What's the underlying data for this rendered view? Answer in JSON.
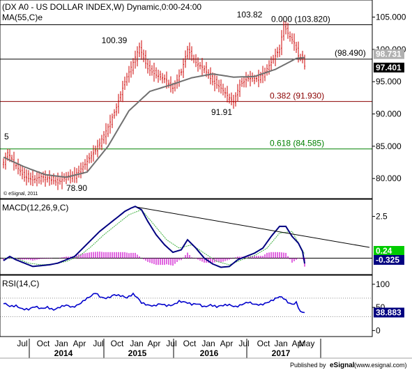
{
  "header": {
    "title": "(DX A0 - US DOLLAR INDEX,W) Dynamic,0:00-24:00",
    "ma_label": "MA(55,C)e",
    "copyright": "© eSignal, 2011",
    "published_by": "Published by",
    "publisher": "eSignal",
    "publisher_url": "(www.esignal.com)"
  },
  "colors": {
    "price_bars": "#cc0000",
    "ma_line": "#707070",
    "macd_line": "#000080",
    "signal_line": "#40b040",
    "histogram": "#cc00cc",
    "rsi_line": "#0000cc",
    "fib_0": "#000000",
    "fib_382": "#8b0000",
    "fib_618": "#008000",
    "trendline": "#000000"
  },
  "chart_data": [
    {
      "type": "bar",
      "panel": "price",
      "title": "(DX A0 - US DOLLAR INDEX,W) Dynamic,0:00-24:00",
      "ylim": [
        77,
        107
      ],
      "yticks": [
        80,
        85,
        90,
        95,
        100,
        105
      ],
      "ytick_labels": [
        "80.000",
        "85.000",
        "90.000",
        "95.000",
        "100.000",
        "105.000"
      ],
      "x": [
        "Jul",
        "Oct",
        "Jan",
        "Apr",
        "Jul",
        "Oct",
        "Jan",
        "Apr",
        "Jul",
        "Oct",
        "Jan",
        "Apr",
        "Jul",
        "Oct",
        "Jan",
        "Apr",
        "May"
      ],
      "year_labels": [
        "2014",
        "2015",
        "2016",
        "2017"
      ],
      "price_anchor_points": [
        [
          0,
          82.5
        ],
        [
          2,
          84.0
        ],
        [
          6,
          82.0
        ],
        [
          10,
          80.2
        ],
        [
          14,
          79.8
        ],
        [
          18,
          80.3
        ],
        [
          22,
          80.0
        ],
        [
          26,
          79.3
        ],
        [
          30,
          80.3
        ],
        [
          34,
          80.6
        ],
        [
          38,
          81.8
        ],
        [
          42,
          83.5
        ],
        [
          46,
          85.5
        ],
        [
          50,
          88.0
        ],
        [
          54,
          91.0
        ],
        [
          58,
          95.0
        ],
        [
          62,
          98.0
        ],
        [
          65,
          100.39
        ],
        [
          69,
          97.0
        ],
        [
          73,
          96.0
        ],
        [
          77,
          95.5
        ],
        [
          81,
          94.0
        ],
        [
          85,
          96.5
        ],
        [
          88,
          100.0
        ],
        [
          92,
          98.0
        ],
        [
          96,
          97.0
        ],
        [
          100,
          95.0
        ],
        [
          104,
          94.0
        ],
        [
          108,
          92.5
        ],
        [
          110,
          91.91
        ],
        [
          113,
          94.5
        ],
        [
          117,
          95.5
        ],
        [
          121,
          95.5
        ],
        [
          125,
          96.5
        ],
        [
          129,
          98.5
        ],
        [
          132,
          100.0
        ],
        [
          134,
          103.82
        ],
        [
          136,
          102.5
        ],
        [
          139,
          101.0
        ],
        [
          141,
          99.0
        ],
        [
          143,
          98.5
        ],
        [
          144,
          97.401
        ]
      ],
      "ma_anchor_points": [
        [
          0,
          83.3
        ],
        [
          10,
          81.8
        ],
        [
          20,
          80.6
        ],
        [
          30,
          80.2
        ],
        [
          40,
          81.0
        ],
        [
          50,
          85.0
        ],
        [
          60,
          90.5
        ],
        [
          70,
          93.5
        ],
        [
          80,
          94.5
        ],
        [
          90,
          95.6
        ],
        [
          100,
          96.2
        ],
        [
          110,
          95.7
        ],
        [
          120,
          95.8
        ],
        [
          130,
          96.9
        ],
        [
          140,
          98.6
        ],
        [
          144,
          98.73
        ]
      ],
      "fib_levels": [
        {
          "label": "0.000 (103.820)",
          "value": 103.82
        },
        {
          "label": "0.382 (91.930)",
          "value": 91.93
        },
        {
          "label": "0.618 (84.585)",
          "value": 84.585
        }
      ],
      "horizontal_line": {
        "label": "(98.490)",
        "value": 98.49
      },
      "annotations": [
        "5",
        "100.39",
        "103.82",
        "91.91",
        "78.90"
      ],
      "last_values": [
        {
          "label": "98.731",
          "value": 98.73
        },
        {
          "label": "97.401",
          "value": 97.401
        }
      ]
    },
    {
      "type": "line",
      "panel": "macd",
      "title": "MACD(12,26,9,C)",
      "ylim": [
        -0.9,
        3.4
      ],
      "yticks": [
        2.5
      ],
      "ytick_labels": [
        "2.5"
      ],
      "macd_anchor_points": [
        [
          0,
          -0.15
        ],
        [
          3,
          0.1
        ],
        [
          6,
          -0.1
        ],
        [
          10,
          -0.3
        ],
        [
          14,
          -0.5
        ],
        [
          18,
          -0.45
        ],
        [
          22,
          -0.4
        ],
        [
          26,
          -0.3
        ],
        [
          30,
          -0.1
        ],
        [
          34,
          0.1
        ],
        [
          38,
          0.6
        ],
        [
          42,
          1.1
        ],
        [
          46,
          1.6
        ],
        [
          50,
          2.0
        ],
        [
          54,
          2.4
        ],
        [
          58,
          2.8
        ],
        [
          61,
          3.0
        ],
        [
          63,
          3.1
        ],
        [
          66,
          2.9
        ],
        [
          69,
          2.2
        ],
        [
          73,
          1.4
        ],
        [
          77,
          0.8
        ],
        [
          81,
          0.35
        ],
        [
          85,
          0.5
        ],
        [
          88,
          1.1
        ],
        [
          92,
          0.6
        ],
        [
          96,
          0.0
        ],
        [
          100,
          -0.35
        ],
        [
          104,
          -0.55
        ],
        [
          108,
          -0.5
        ],
        [
          112,
          -0.1
        ],
        [
          116,
          0.1
        ],
        [
          120,
          0.3
        ],
        [
          124,
          0.6
        ],
        [
          128,
          1.3
        ],
        [
          132,
          1.9
        ],
        [
          135,
          1.9
        ],
        [
          138,
          1.3
        ],
        [
          141,
          0.9
        ],
        [
          143,
          0.4
        ],
        [
          144,
          -0.325
        ]
      ],
      "signal_anchor_points": [
        [
          0,
          0.0
        ],
        [
          6,
          0.0
        ],
        [
          12,
          -0.3
        ],
        [
          18,
          -0.4
        ],
        [
          24,
          -0.35
        ],
        [
          30,
          -0.2
        ],
        [
          36,
          0.1
        ],
        [
          42,
          0.7
        ],
        [
          48,
          1.4
        ],
        [
          54,
          2.0
        ],
        [
          60,
          2.6
        ],
        [
          66,
          2.9
        ],
        [
          72,
          2.0
        ],
        [
          78,
          1.1
        ],
        [
          84,
          0.6
        ],
        [
          90,
          0.8
        ],
        [
          96,
          0.3
        ],
        [
          102,
          -0.2
        ],
        [
          108,
          -0.4
        ],
        [
          114,
          -0.1
        ],
        [
          120,
          0.15
        ],
        [
          126,
          0.6
        ],
        [
          132,
          1.5
        ],
        [
          138,
          1.6
        ],
        [
          144,
          0.24
        ]
      ],
      "trendline": [
        [
          64,
          3.05
        ],
        [
          150,
          0.9
        ]
      ],
      "last_values": [
        {
          "label": "0.24",
          "value": 0.24
        },
        {
          "label": "-0.325",
          "value": -0.325
        }
      ]
    },
    {
      "type": "line",
      "panel": "rsi",
      "title": "RSI(14,C)",
      "ylim": [
        -10,
        115
      ],
      "yticks": [
        0,
        50,
        100
      ],
      "ytick_labels": [
        "0",
        "50",
        "100"
      ],
      "reference_lines": [
        30,
        70
      ],
      "rsi_anchor_points": [
        [
          0,
          58
        ],
        [
          3,
          52
        ],
        [
          6,
          55
        ],
        [
          9,
          48
        ],
        [
          12,
          45
        ],
        [
          15,
          50
        ],
        [
          18,
          47
        ],
        [
          21,
          52
        ],
        [
          24,
          46
        ],
        [
          27,
          50
        ],
        [
          30,
          53
        ],
        [
          33,
          50
        ],
        [
          36,
          58
        ],
        [
          39,
          68
        ],
        [
          42,
          74
        ],
        [
          44,
          80
        ],
        [
          46,
          72
        ],
        [
          48,
          70
        ],
        [
          50,
          72
        ],
        [
          53,
          79
        ],
        [
          56,
          75
        ],
        [
          59,
          69
        ],
        [
          62,
          78
        ],
        [
          64,
          72
        ],
        [
          66,
          62
        ],
        [
          69,
          56
        ],
        [
          72,
          52
        ],
        [
          75,
          56
        ],
        [
          78,
          54
        ],
        [
          81,
          57
        ],
        [
          84,
          64
        ],
        [
          87,
          60
        ],
        [
          90,
          55
        ],
        [
          93,
          58
        ],
        [
          96,
          53
        ],
        [
          99,
          56
        ],
        [
          102,
          50
        ],
        [
          105,
          53
        ],
        [
          108,
          56
        ],
        [
          111,
          53
        ],
        [
          114,
          57
        ],
        [
          117,
          60
        ],
        [
          120,
          55
        ],
        [
          123,
          56
        ],
        [
          126,
          62
        ],
        [
          129,
          67
        ],
        [
          132,
          72
        ],
        [
          134,
          68
        ],
        [
          136,
          60
        ],
        [
          138,
          57
        ],
        [
          140,
          62
        ],
        [
          142,
          42
        ],
        [
          144,
          38.883
        ]
      ],
      "last_values": [
        {
          "label": "38.883",
          "value": 38.883
        }
      ]
    }
  ]
}
